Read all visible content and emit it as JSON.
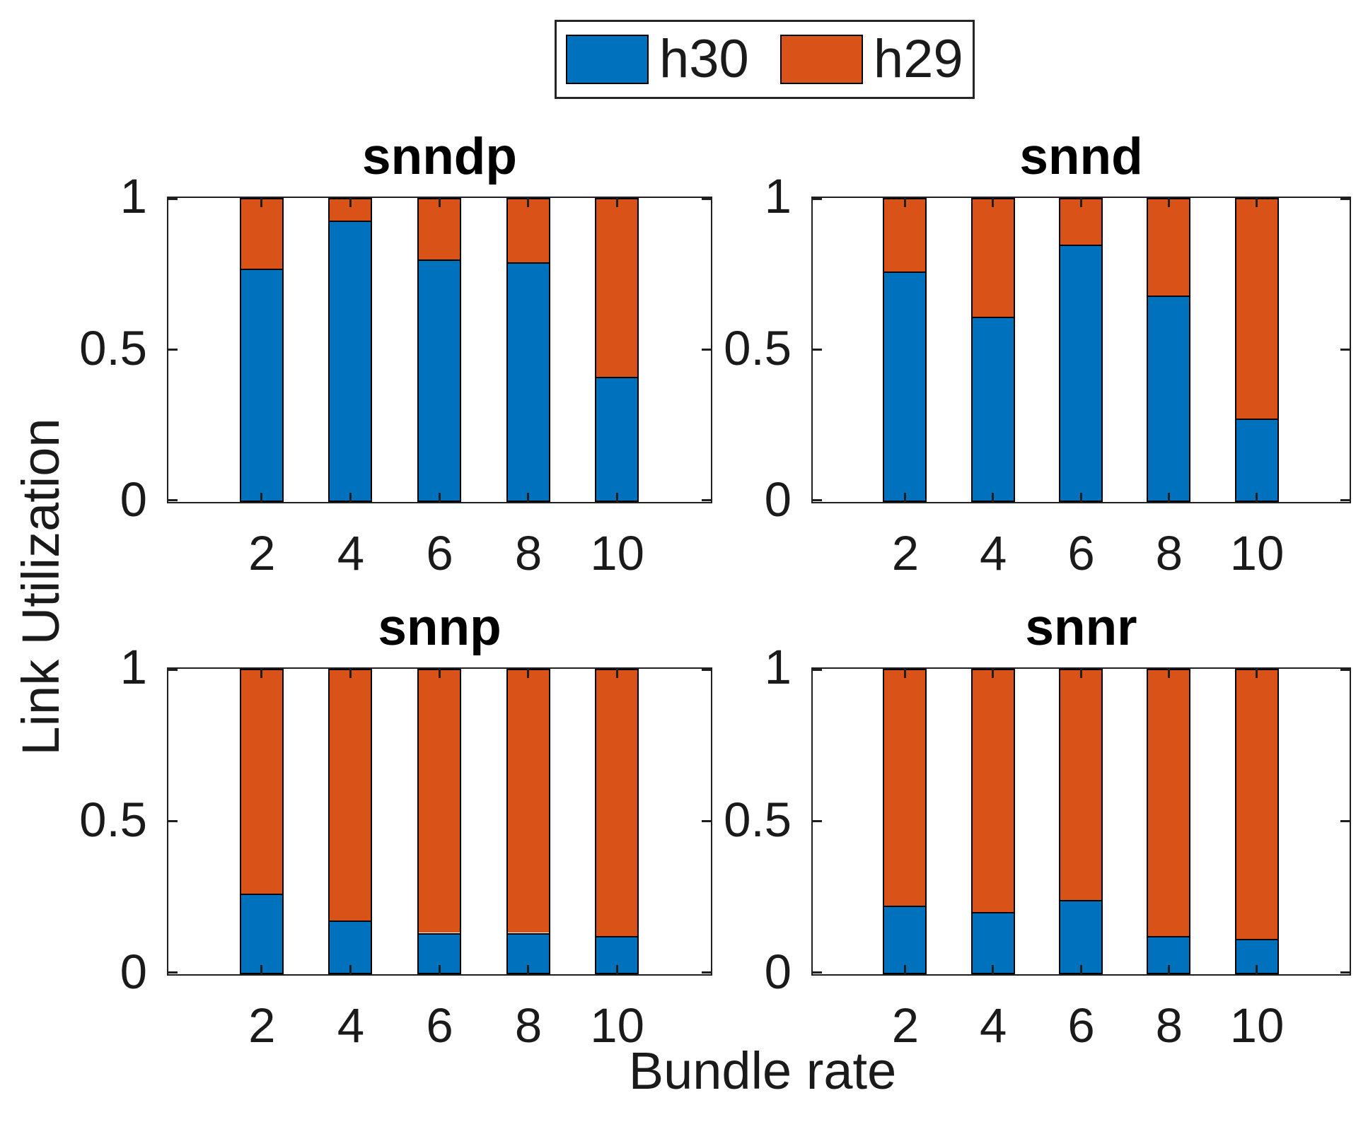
{
  "figure": {
    "background": "#ffffff",
    "ylabel": "Link Utilization",
    "xlabel": "Bundle rate",
    "axis_color": "#1f1f1f",
    "text_color": "#1a1a1a",
    "bar_edge_color": "#000000"
  },
  "legend": {
    "position": "top-center",
    "items": [
      {
        "label": "h30",
        "color": "#0072BD"
      },
      {
        "label": "h29",
        "color": "#D95319"
      }
    ]
  },
  "chart_data": [
    {
      "type": "bar",
      "stacked": true,
      "title": "snndp",
      "categories": [
        2,
        4,
        6,
        8,
        10
      ],
      "series": [
        {
          "name": "h30",
          "color": "#0072BD",
          "values": [
            0.77,
            0.93,
            0.8,
            0.79,
            0.41
          ]
        },
        {
          "name": "h29",
          "color": "#D95319",
          "values": [
            0.23,
            0.07,
            0.2,
            0.21,
            0.59
          ]
        }
      ],
      "xlim": [
        -0.1,
        12.1
      ],
      "ylim": [
        0,
        1
      ],
      "yticks": [
        0,
        0.5,
        1
      ],
      "ytick_labels": [
        "0",
        "0.5",
        "1"
      ],
      "grid": false,
      "layout": "top-left"
    },
    {
      "type": "bar",
      "stacked": true,
      "title": "snnd",
      "categories": [
        2,
        4,
        6,
        8,
        10
      ],
      "series": [
        {
          "name": "h30",
          "color": "#0072BD",
          "values": [
            0.76,
            0.61,
            0.85,
            0.68,
            0.27
          ]
        },
        {
          "name": "h29",
          "color": "#D95319",
          "values": [
            0.24,
            0.39,
            0.15,
            0.32,
            0.73
          ]
        }
      ],
      "xlim": [
        -0.1,
        12.1
      ],
      "ylim": [
        0,
        1
      ],
      "yticks": [
        0,
        0.5,
        1
      ],
      "ytick_labels": [
        "0",
        "0.5",
        "1"
      ],
      "grid": false,
      "layout": "top-right"
    },
    {
      "type": "bar",
      "stacked": true,
      "title": "snnp",
      "categories": [
        2,
        4,
        6,
        8,
        10
      ],
      "series": [
        {
          "name": "h30",
          "color": "#0072BD",
          "values": [
            0.26,
            0.17,
            0.13,
            0.13,
            0.12
          ]
        },
        {
          "name": "h29",
          "color": "#D95319",
          "values": [
            0.74,
            0.83,
            0.87,
            0.87,
            0.88
          ]
        }
      ],
      "xlim": [
        -0.1,
        12.1
      ],
      "ylim": [
        0,
        1
      ],
      "yticks": [
        0,
        0.5,
        1
      ],
      "ytick_labels": [
        "0",
        "0.5",
        "1"
      ],
      "grid": false,
      "layout": "bottom-left"
    },
    {
      "type": "bar",
      "stacked": true,
      "title": "snnr",
      "categories": [
        2,
        4,
        6,
        8,
        10
      ],
      "series": [
        {
          "name": "h30",
          "color": "#0072BD",
          "values": [
            0.22,
            0.2,
            0.24,
            0.12,
            0.11
          ]
        },
        {
          "name": "h29",
          "color": "#D95319",
          "values": [
            0.78,
            0.8,
            0.76,
            0.88,
            0.89
          ]
        }
      ],
      "xlim": [
        -0.1,
        12.1
      ],
      "ylim": [
        0,
        1
      ],
      "yticks": [
        0,
        0.5,
        1
      ],
      "ytick_labels": [
        "0",
        "0.5",
        "1"
      ],
      "grid": false,
      "layout": "bottom-right"
    }
  ]
}
